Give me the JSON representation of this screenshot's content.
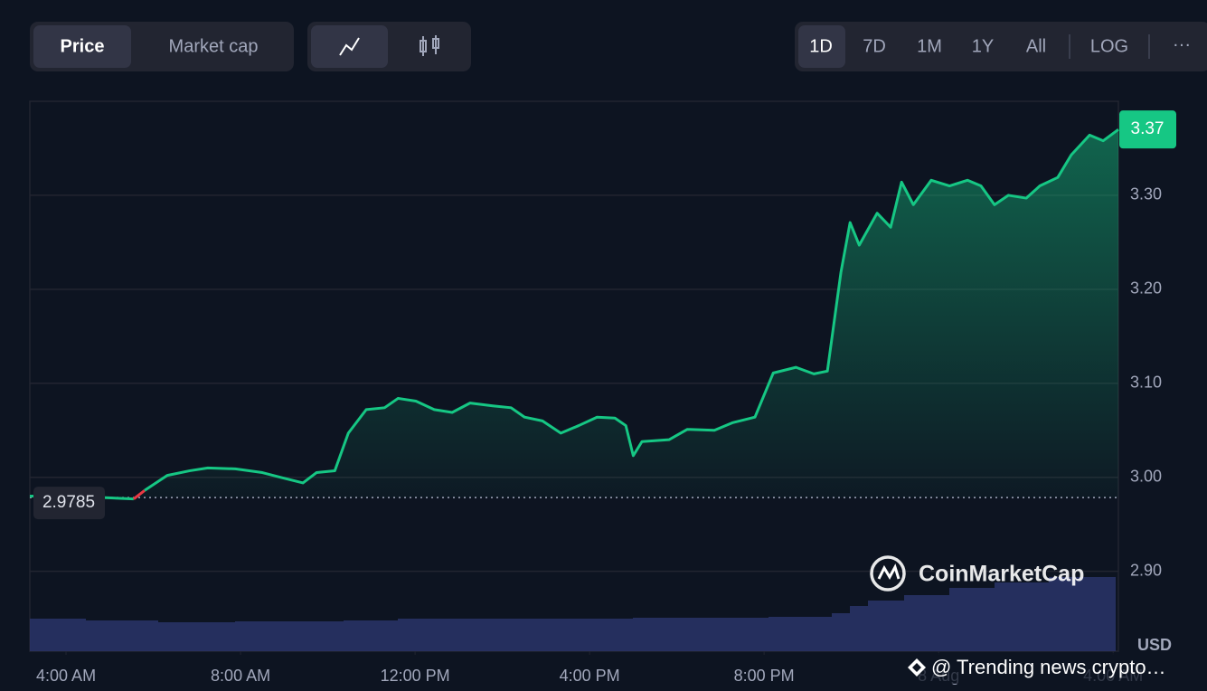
{
  "ui": {
    "tabs": [
      "Price",
      "Market cap"
    ],
    "ranges": [
      "1D",
      "7D",
      "1M",
      "1Y",
      "All"
    ],
    "scale": "LOG",
    "more": "···",
    "currency": "USD",
    "watermark": "CoinMarketCap",
    "caption": "@ Trending news crypto…"
  },
  "chart_data": {
    "type": "line",
    "x": [
      3.17,
      4.56,
      5.55,
      5.8,
      6.32,
      6.84,
      7.25,
      7.88,
      8.5,
      8.91,
      9.43,
      9.74,
      10.16,
      10.47,
      10.88,
      11.3,
      11.61,
      12.02,
      12.44,
      12.85,
      13.26,
      13.78,
      14.2,
      14.51,
      14.92,
      15.34,
      15.75,
      16.17,
      16.58,
      16.83,
      17.0,
      17.2,
      17.82,
      18.24,
      18.86,
      19.27,
      19.79,
      20.21,
      20.73,
      21.14,
      21.45,
      21.76,
      21.97,
      22.18,
      22.59,
      22.9,
      23.15,
      23.42,
      23.83,
      24.25,
      24.66,
      24.97,
      25.28,
      25.6,
      26.01,
      26.32,
      26.73,
      27.04,
      27.46,
      27.77,
      28.12
    ],
    "series": [
      {
        "name": "Price",
        "color": "#16c784",
        "below_color": "#ea3943",
        "values": [
          2.98,
          2.979,
          2.977,
          2.986,
          3.002,
          3.007,
          3.01,
          3.009,
          3.005,
          3.0,
          2.994,
          3.005,
          3.007,
          3.047,
          3.072,
          3.074,
          3.084,
          3.081,
          3.072,
          3.069,
          3.079,
          3.076,
          3.074,
          3.064,
          3.06,
          3.047,
          3.055,
          3.064,
          3.063,
          3.055,
          3.023,
          3.038,
          3.04,
          3.051,
          3.05,
          3.058,
          3.064,
          3.111,
          3.117,
          3.11,
          3.113,
          3.218,
          3.271,
          3.247,
          3.281,
          3.266,
          3.314,
          3.29,
          3.316,
          3.31,
          3.316,
          3.31,
          3.29,
          3.3,
          3.297,
          3.31,
          3.319,
          3.343,
          3.364,
          3.358,
          3.37
        ]
      }
    ],
    "reference_price": 2.9785,
    "current_price": 3.37,
    "xlim": [
      3.17,
      28.12
    ],
    "xticks": [
      {
        "value": 4,
        "label": "4:00 AM"
      },
      {
        "value": 8,
        "label": "8:00 AM"
      },
      {
        "value": 12,
        "label": "12:00 PM"
      },
      {
        "value": 16,
        "label": "4:00 PM"
      },
      {
        "value": 20,
        "label": "8:00 PM"
      },
      {
        "value": 24,
        "label": "8 Aug"
      },
      {
        "value": 28,
        "label": "4:00 AM"
      }
    ],
    "ylim": [
      2.815,
      3.4
    ],
    "yticks": [
      {
        "value": 2.9,
        "label": "2.90"
      },
      {
        "value": 3,
        "label": "3.00"
      },
      {
        "value": 3.1,
        "label": "3.10"
      },
      {
        "value": 3.2,
        "label": "3.20"
      },
      {
        "value": 3.3,
        "label": "3.30"
      }
    ],
    "grid": true
  }
}
